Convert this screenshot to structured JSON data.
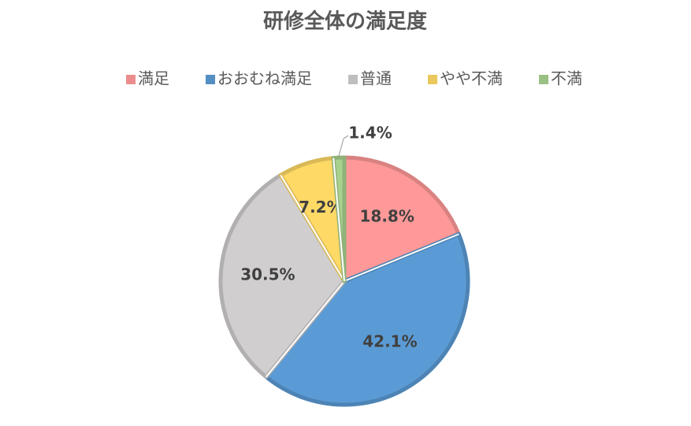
{
  "chart_data": {
    "type": "pie",
    "title": "研修全体の満足度",
    "categories": [
      "満足",
      "おおむね満足",
      "普通",
      "やや不満",
      "不満"
    ],
    "values": [
      18.8,
      42.1,
      30.5,
      7.2,
      1.4
    ],
    "value_labels": [
      "18.8%",
      "42.1%",
      "30.5%",
      "7.2%",
      "1.4%"
    ],
    "colors": [
      "#ff9999",
      "#5b9bd5",
      "#d0cece",
      "#ffd966",
      "#a9d18e"
    ],
    "legend": "top"
  }
}
